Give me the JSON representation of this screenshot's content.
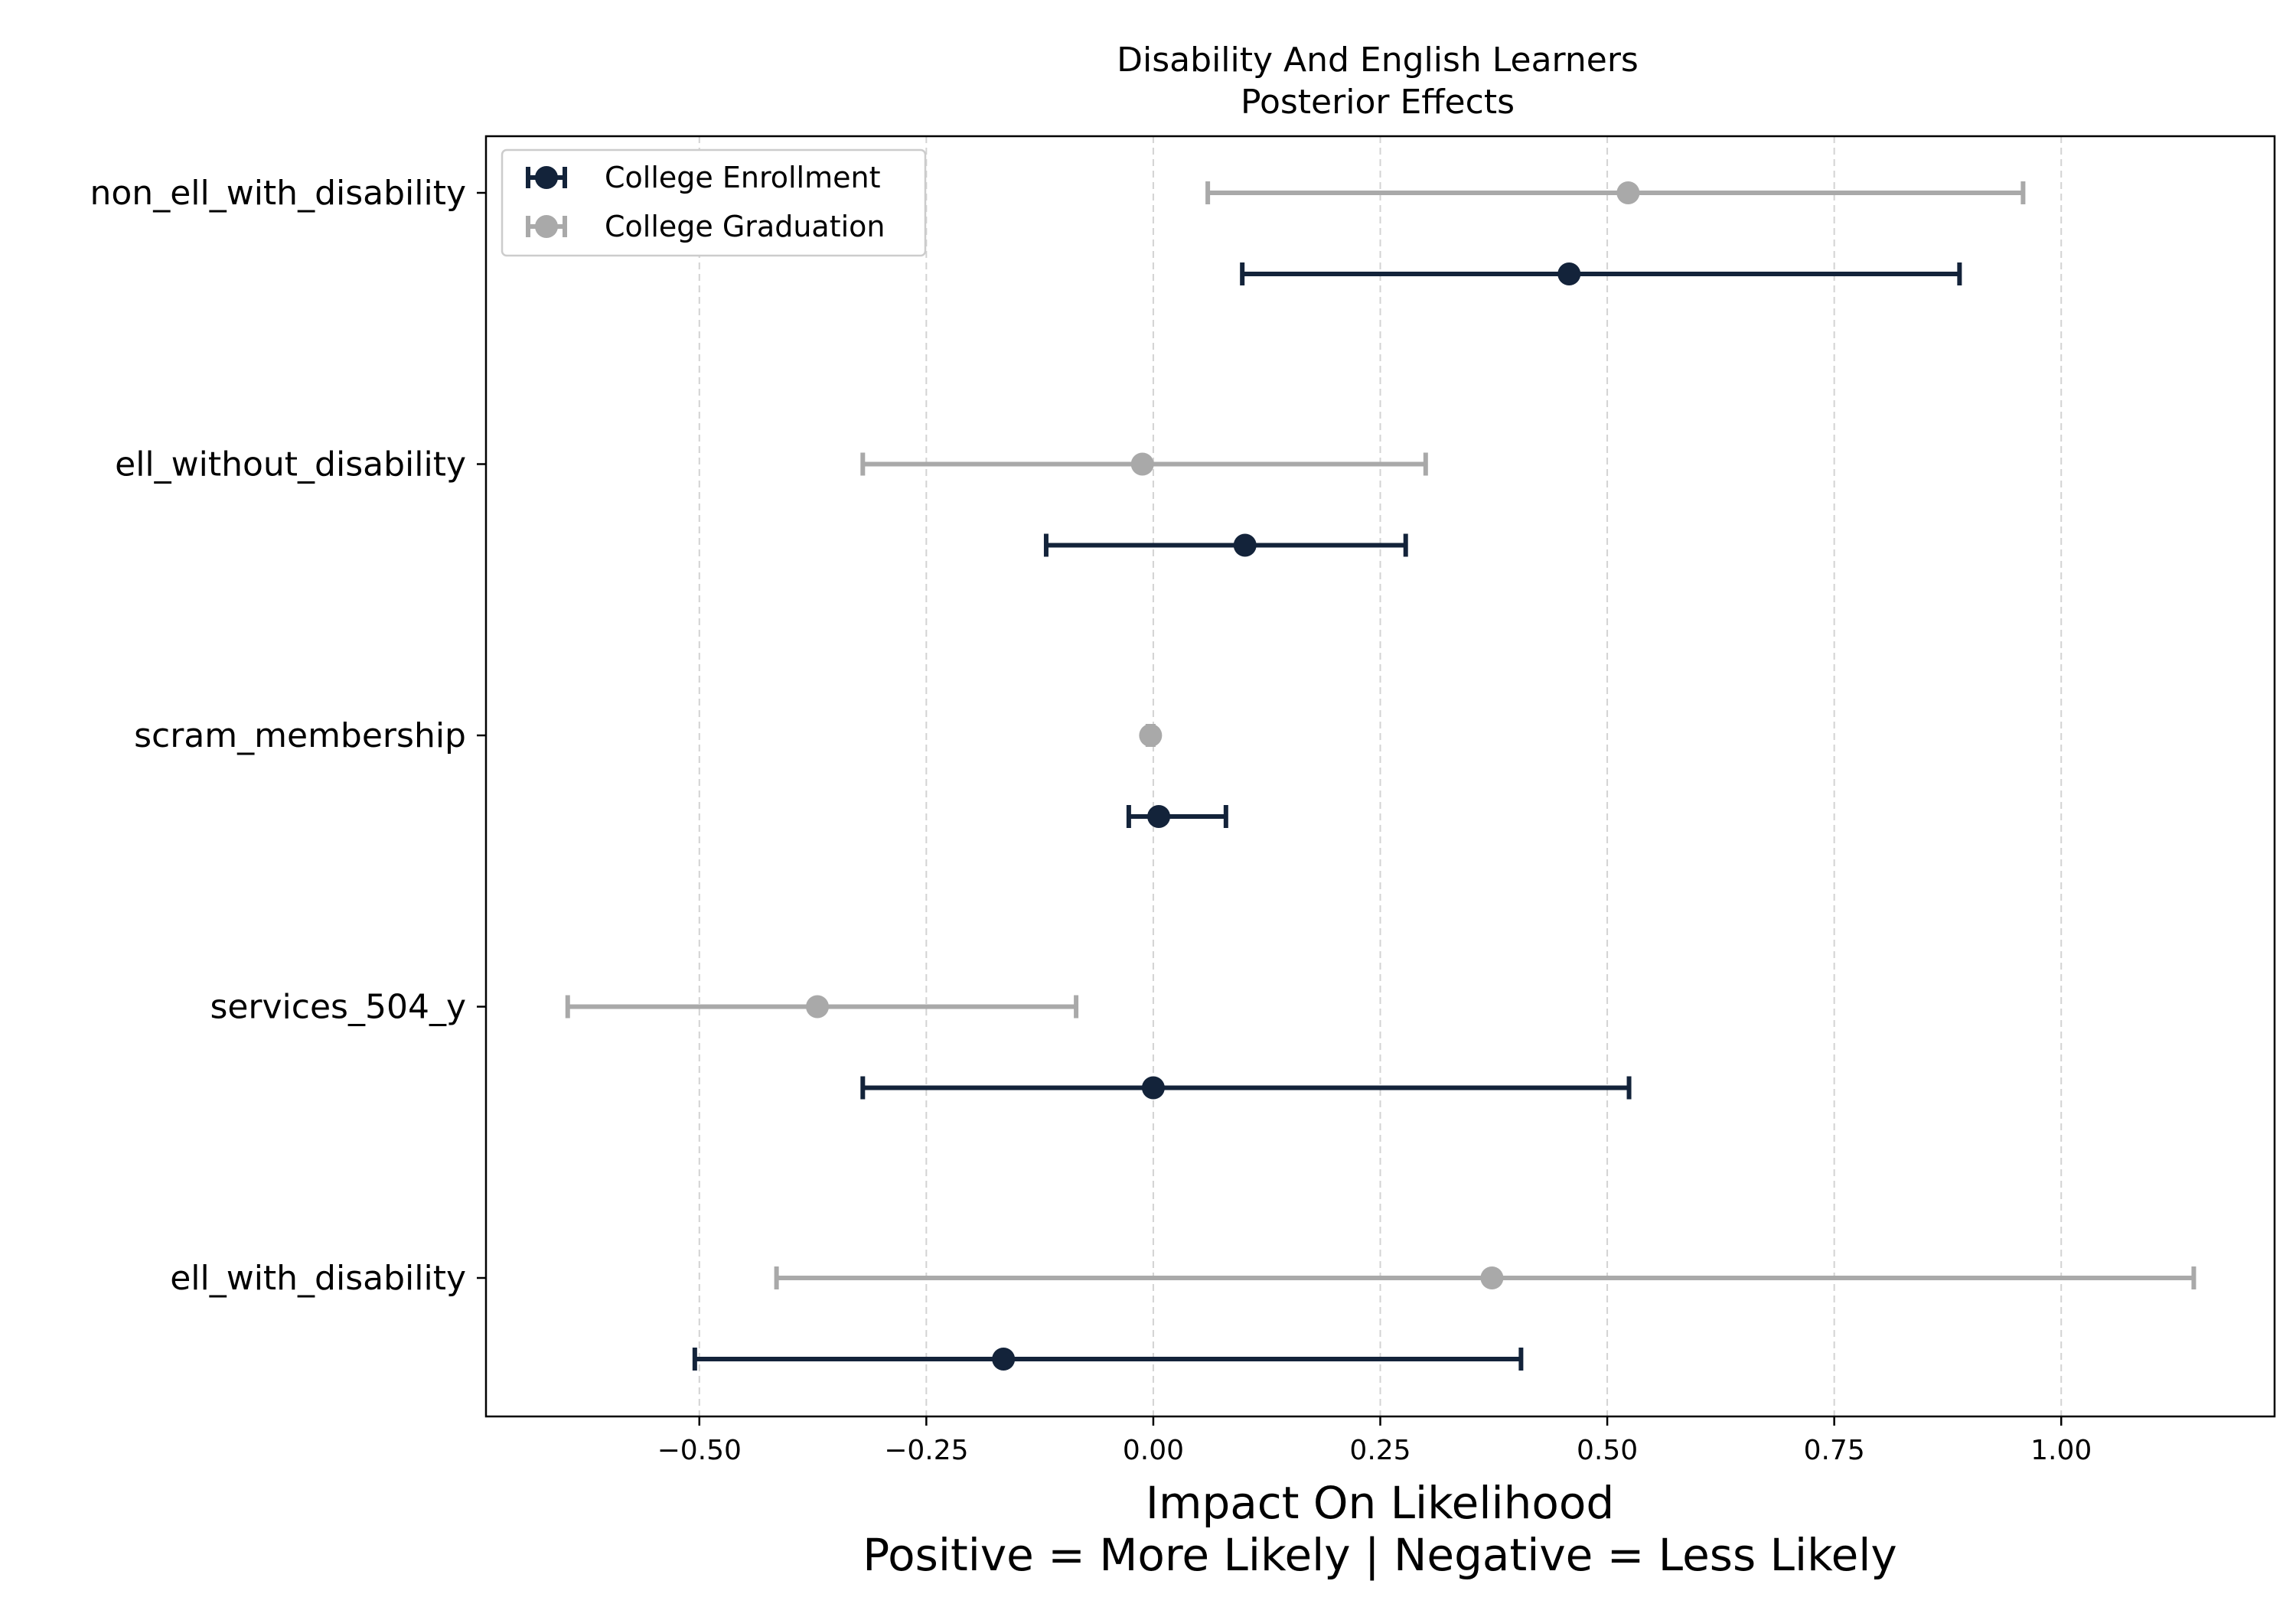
{
  "chart_data": {
    "type": "errorbar",
    "orientation": "horizontal",
    "title": [
      "Disability And English Learners",
      "Posterior Effects"
    ],
    "xlabel": [
      "Impact On Likelihood",
      "Positive = More Likely | Negative = Less Likely"
    ],
    "ylabel": "",
    "xlim": [
      -0.735,
      1.235
    ],
    "xticks": [
      -0.5,
      -0.25,
      0.0,
      0.25,
      0.5,
      0.75,
      1.0
    ],
    "xtick_labels": [
      "−0.50",
      "−0.25",
      "0.00",
      "0.25",
      "0.50",
      "0.75",
      "1.00"
    ],
    "grid": {
      "x": true,
      "y": false,
      "style": "dashed"
    },
    "legend_position": "upper-left",
    "categories": [
      "non_ell_with_disability",
      "ell_without_disability",
      "scram_membership",
      "services_504_y",
      "ell_with_disability"
    ],
    "series": [
      {
        "name": "College Enrollment",
        "color": "#13233a",
        "points": [
          {
            "category": "non_ell_with_disability",
            "mean": 0.458,
            "low": 0.098,
            "high": 0.888
          },
          {
            "category": "ell_without_disability",
            "mean": 0.101,
            "low": -0.118,
            "high": 0.278
          },
          {
            "category": "scram_membership",
            "mean": 0.006,
            "low": -0.027,
            "high": 0.08
          },
          {
            "category": "services_504_y",
            "mean": 0.0,
            "low": -0.32,
            "high": 0.524
          },
          {
            "category": "ell_with_disability",
            "mean": -0.165,
            "low": -0.505,
            "high": 0.405
          }
        ]
      },
      {
        "name": "College Graduation",
        "color": "#a9a9a9",
        "points": [
          {
            "category": "non_ell_with_disability",
            "mean": 0.523,
            "low": 0.06,
            "high": 0.958
          },
          {
            "category": "ell_without_disability",
            "mean": -0.012,
            "low": -0.32,
            "high": 0.3
          },
          {
            "category": "scram_membership",
            "mean": -0.003,
            "low": -0.006,
            "high": 0.0
          },
          {
            "category": "services_504_y",
            "mean": -0.37,
            "low": -0.645,
            "high": -0.085
          },
          {
            "category": "ell_with_disability",
            "mean": 0.373,
            "low": -0.415,
            "high": 1.146
          }
        ]
      }
    ]
  }
}
